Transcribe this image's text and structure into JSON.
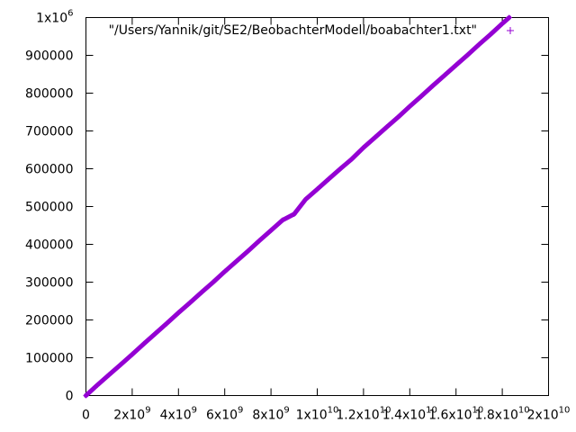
{
  "chart_data": {
    "type": "scatter",
    "title": "",
    "xlabel": "",
    "ylabel": "",
    "xlim": [
      0,
      20000000000
    ],
    "ylim": [
      0,
      1000000
    ],
    "grid": false,
    "legend_position": "top-right",
    "marker": "+",
    "x_ticks": [
      {
        "value": 0,
        "base": "0",
        "exp": ""
      },
      {
        "value": 2000000000,
        "base": "2x10",
        "exp": "9"
      },
      {
        "value": 4000000000,
        "base": "4x10",
        "exp": "9"
      },
      {
        "value": 6000000000,
        "base": "6x10",
        "exp": "9"
      },
      {
        "value": 8000000000,
        "base": "8x10",
        "exp": "9"
      },
      {
        "value": 10000000000,
        "base": "1x10",
        "exp": "10"
      },
      {
        "value": 12000000000,
        "base": "1.2x10",
        "exp": "10"
      },
      {
        "value": 14000000000,
        "base": "1.4x10",
        "exp": "10"
      },
      {
        "value": 16000000000,
        "base": "1.6x10",
        "exp": "10"
      },
      {
        "value": 18000000000,
        "base": "1.8x10",
        "exp": "10"
      },
      {
        "value": 20000000000,
        "base": "2x10",
        "exp": "10"
      }
    ],
    "y_ticks": [
      {
        "value": 0,
        "base": "0",
        "exp": ""
      },
      {
        "value": 100000,
        "base": "100000",
        "exp": ""
      },
      {
        "value": 200000,
        "base": "200000",
        "exp": ""
      },
      {
        "value": 300000,
        "base": "300000",
        "exp": ""
      },
      {
        "value": 400000,
        "base": "400000",
        "exp": ""
      },
      {
        "value": 500000,
        "base": "500000",
        "exp": ""
      },
      {
        "value": 600000,
        "base": "600000",
        "exp": ""
      },
      {
        "value": 700000,
        "base": "700000",
        "exp": ""
      },
      {
        "value": 800000,
        "base": "800000",
        "exp": ""
      },
      {
        "value": 900000,
        "base": "900000",
        "exp": ""
      },
      {
        "value": 1000000,
        "base": "1x10",
        "exp": "6"
      }
    ],
    "series": [
      {
        "name": "\"/Users/Yannik/git/SE2/BeobachterModell/boabachter1.txt\"",
        "color": "#9400d3",
        "x": [
          0,
          500000000,
          1000000000,
          1500000000,
          2000000000,
          2500000000,
          3000000000,
          3500000000,
          4000000000,
          4500000000,
          5000000000,
          5500000000,
          6000000000,
          6500000000,
          7000000000,
          7500000000,
          8000000000,
          8500000000,
          9000000000,
          9500000000,
          10000000000,
          10500000000,
          11000000000,
          11500000000,
          12000000000,
          12500000000,
          13000000000,
          13500000000,
          14000000000,
          14500000000,
          15000000000,
          15500000000,
          16000000000,
          16500000000,
          17000000000,
          17500000000,
          18000000000,
          18300000000
        ],
        "y": [
          0,
          28000,
          55000,
          82000,
          109000,
          137000,
          164000,
          191000,
          219000,
          246000,
          273000,
          300000,
          328000,
          355000,
          382000,
          410000,
          437000,
          464000,
          480000,
          519000,
          546000,
          573000,
          600000,
          626000,
          656000,
          683000,
          710000,
          737000,
          765000,
          792000,
          820000,
          847000,
          874000,
          901000,
          929000,
          956000,
          984000,
          1000000
        ]
      }
    ]
  }
}
